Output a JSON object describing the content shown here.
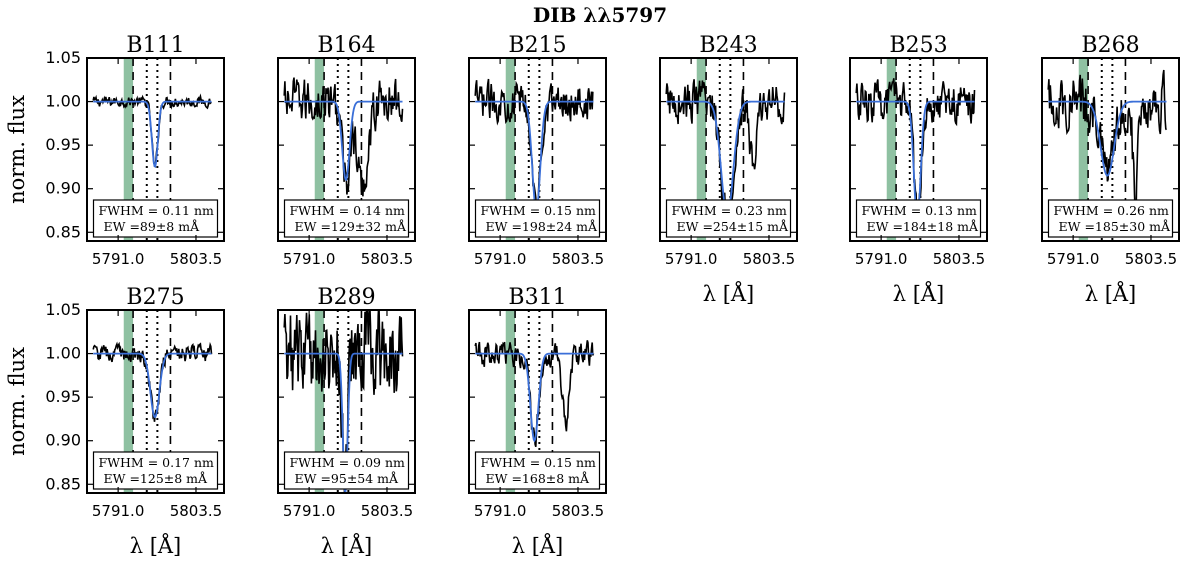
{
  "figure": {
    "title": "DIB λλ5797"
  },
  "chart_data": {
    "type": "line",
    "shared": {
      "xlim": [
        5786.0,
        5808.0
      ],
      "ylim": [
        0.84,
        1.05
      ],
      "xticks": [
        5791.0,
        5803.5
      ],
      "xtick_labels": [
        "5791.0",
        "5803.5"
      ],
      "yticks": [
        0.85,
        0.9,
        0.95,
        1.0,
        1.05
      ],
      "ytick_labels": [
        "0.85",
        "0.90",
        "0.95",
        "1.00",
        "1.05"
      ],
      "ylabel": "norm. flux",
      "xlabel": "λ [Å]",
      "band": [
        5791.9,
        5793.4
      ],
      "dashed_lines": [
        5793.4,
        5799.4
      ],
      "dotted_lines": [
        5795.6,
        5797.3
      ],
      "colors": {
        "observed": "#000000",
        "fit": "#3a6fd8",
        "band": "#8fc1a2"
      }
    },
    "panels": [
      {
        "name": "B111",
        "fwhm": "FWHM = 0.11 nm",
        "ew": "EW =89±8 mÅ",
        "center": 5796.9,
        "depth": 0.075,
        "sigma": 0.47,
        "noise": 0.005,
        "extra": []
      },
      {
        "name": "B164",
        "fwhm": "FWHM = 0.14 nm",
        "ew": "EW =129±32 mÅ",
        "center": 5796.9,
        "depth": 0.09,
        "sigma": 0.59,
        "noise": 0.022,
        "extra": [
          {
            "c": 5799.5,
            "d": 0.1,
            "s": 0.9
          }
        ]
      },
      {
        "name": "B215",
        "fwhm": "FWHM = 0.15 nm",
        "ew": "EW =198±24 mÅ",
        "center": 5796.8,
        "depth": 0.125,
        "sigma": 0.64,
        "noise": 0.018,
        "extra": []
      },
      {
        "name": "B243",
        "fwhm": "FWHM = 0.23 nm",
        "ew": "EW =254±15 mÅ",
        "center": 5796.8,
        "depth": 0.13,
        "sigma": 0.98,
        "noise": 0.02,
        "extra": [
          {
            "c": 5801.0,
            "d": 0.07,
            "s": 0.6
          }
        ]
      },
      {
        "name": "B253",
        "fwhm": "FWHM = 0.13 nm",
        "ew": "EW =184±18 mÅ",
        "center": 5796.8,
        "depth": 0.135,
        "sigma": 0.55,
        "noise": 0.02,
        "extra": []
      },
      {
        "name": "B268",
        "fwhm": "FWHM = 0.26 nm",
        "ew": "EW =185±30 mÅ",
        "center": 5796.5,
        "depth": 0.085,
        "sigma": 1.1,
        "noise": 0.025,
        "extra": [
          {
            "c": 5801.0,
            "d": 0.12,
            "s": 0.35
          }
        ]
      },
      {
        "name": "B275",
        "fwhm": "FWHM = 0.17 nm",
        "ew": "EW =125±8 mÅ",
        "center": 5796.9,
        "depth": 0.073,
        "sigma": 0.72,
        "noise": 0.008,
        "extra": []
      },
      {
        "name": "B289",
        "fwhm": "FWHM = 0.09 nm",
        "ew": "EW =95±54 mÅ",
        "center": 5796.8,
        "depth": 0.16,
        "sigma": 0.38,
        "noise": 0.045,
        "extra": []
      },
      {
        "name": "B311",
        "fwhm": "FWHM = 0.15 nm",
        "ew": "EW =168±8 mÅ",
        "center": 5796.5,
        "depth": 0.1,
        "sigma": 0.64,
        "noise": 0.012,
        "extra": [
          {
            "c": 5801.5,
            "d": 0.08,
            "s": 0.5
          }
        ]
      }
    ]
  }
}
